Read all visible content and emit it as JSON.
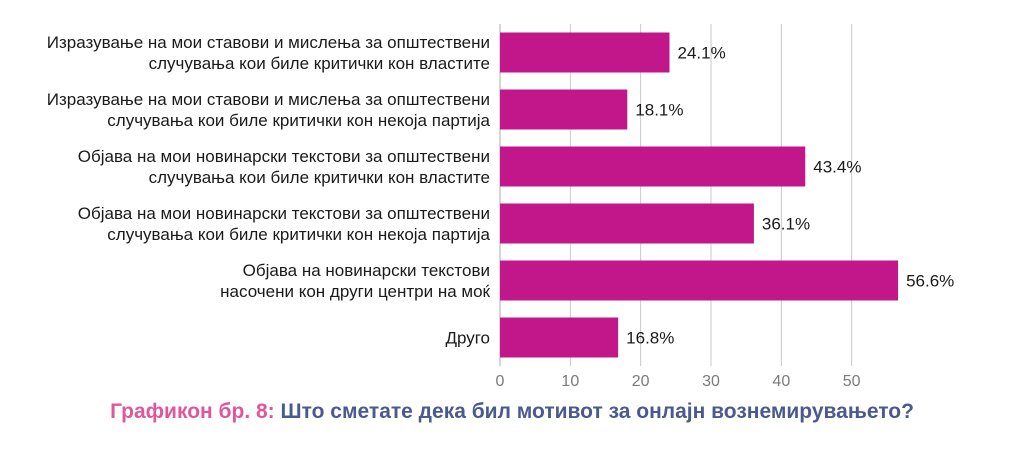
{
  "chart_data": {
    "type": "bar",
    "orientation": "horizontal",
    "categories": [
      [
        "Изразување на мои ставови и мислења за општествени",
        "случувања кои биле критички кон властите"
      ],
      [
        "Изразување на мои ставови и мислења за општествени",
        "случувања кои биле критички кон некоја партија"
      ],
      [
        "Објава на мои новинарски текстови за општествени",
        "случувања кои биле критички кон властите"
      ],
      [
        "Објава на мои новинарски текстови за општествени",
        "случувања кои биле критички кон некоја партија"
      ],
      [
        "Објава на новинарски текстови",
        "насочени кон други центри на моќ"
      ],
      [
        "Друго"
      ]
    ],
    "values": [
      24.1,
      18.1,
      43.4,
      36.1,
      56.6,
      16.8
    ],
    "value_labels": [
      "24.1%",
      "18.1%",
      "43.4%",
      "36.1%",
      "56.6%",
      "16.8%"
    ],
    "xlim": [
      0,
      60
    ],
    "xticks": [
      0,
      10,
      20,
      30,
      40,
      50
    ],
    "grid": true,
    "bar_color": "#c2178a"
  },
  "caption": {
    "prefix": "Графикон бр. 8:",
    "question": "Што сметате дека бил мотивот за онлајн вознемирувањето?"
  },
  "colors": {
    "bar": "#c2178a",
    "caption_prefix": "#e0569a",
    "caption_question": "#4a5a8e",
    "grid": "#c8c8c8"
  }
}
